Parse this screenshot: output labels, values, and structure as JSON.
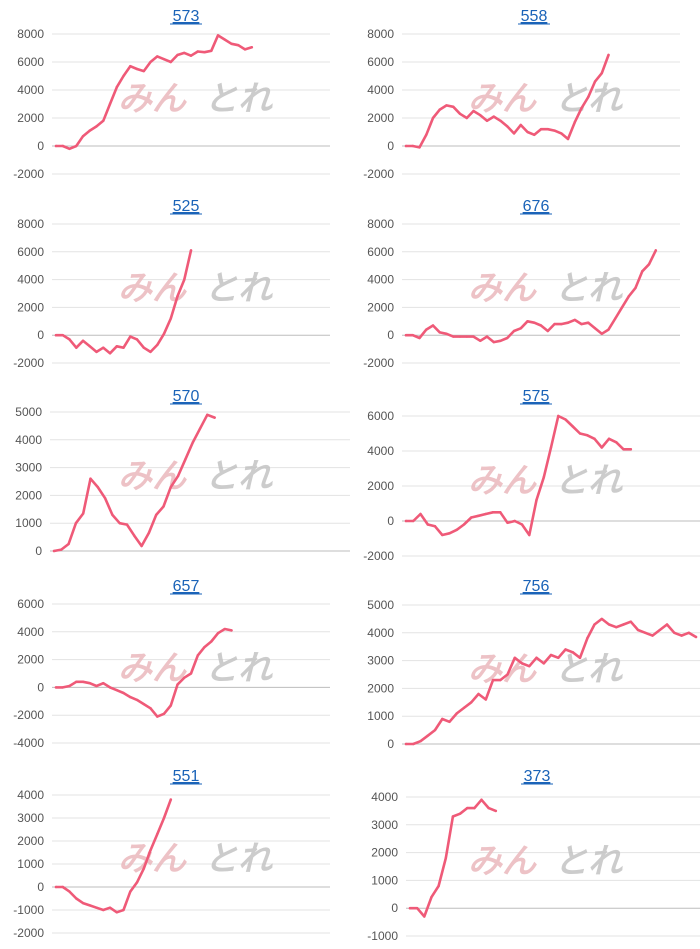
{
  "colors": {
    "line": "#ef5a78",
    "title_link": "#1a63b8",
    "grid": "#e3e3e3",
    "zero_line": "#bdbdbd",
    "tick_text": "#555555",
    "watermark_pink": "#eab8bd",
    "watermark_gray": "#c4c4c4"
  },
  "watermark": {
    "text_left": "みん",
    "text_right": "とれ"
  },
  "chart_data": [
    {
      "type": "line",
      "title": "573",
      "yticks": [
        8000,
        6000,
        4000,
        2000,
        0,
        -2000
      ],
      "ylim": [
        -2000,
        8000
      ],
      "x_points": 40,
      "values": [
        0,
        0,
        -200,
        0,
        700,
        1100,
        1400,
        1800,
        3000,
        4200,
        5000,
        5700,
        5500,
        5350,
        6000,
        6400,
        6200,
        6000,
        6500,
        6650,
        6450,
        6750,
        6700,
        6800,
        7900,
        7600,
        7300,
        7200,
        6900,
        7050
      ]
    },
    {
      "type": "line",
      "title": "558",
      "yticks": [
        8000,
        6000,
        4000,
        2000,
        0,
        -2000
      ],
      "ylim": [
        -2000,
        8000
      ],
      "x_points": 40,
      "values": [
        0,
        0,
        -100,
        800,
        2000,
        2600,
        2900,
        2800,
        2300,
        2000,
        2500,
        2200,
        1800,
        2100,
        1800,
        1400,
        900,
        1500,
        1000,
        800,
        1200,
        1200,
        1100,
        900,
        500,
        1700,
        2700,
        3500,
        4600,
        5200,
        6500
      ]
    },
    {
      "type": "line",
      "title": "525",
      "yticks": [
        8000,
        6000,
        4000,
        2000,
        0,
        -2000
      ],
      "ylim": [
        -2000,
        8000
      ],
      "x_points": 40,
      "values": [
        0,
        0,
        -300,
        -900,
        -400,
        -800,
        -1200,
        -900,
        -1300,
        -800,
        -900,
        -100,
        -300,
        -900,
        -1200,
        -700,
        100,
        1200,
        2800,
        4000,
        6100
      ]
    },
    {
      "type": "line",
      "title": "676",
      "yticks": [
        8000,
        6000,
        4000,
        2000,
        0,
        -2000
      ],
      "ylim": [
        -2000,
        8000
      ],
      "x_points": 40,
      "values": [
        0,
        0,
        -200,
        400,
        700,
        200,
        100,
        -100,
        -100,
        -100,
        -100,
        -400,
        -100,
        -500,
        -400,
        -200,
        300,
        500,
        1000,
        900,
        700,
        300,
        800,
        800,
        900,
        1100,
        800,
        900,
        500,
        100,
        400,
        1200,
        2000,
        2800,
        3400,
        4600,
        5100,
        6100
      ]
    },
    {
      "type": "line",
      "title": "570",
      "yticks": [
        5000,
        4000,
        3000,
        2000,
        1000,
        0
      ],
      "ylim": [
        0,
        5000
      ],
      "x_points": 40,
      "values": [
        0,
        50,
        250,
        1000,
        1350,
        2600,
        2300,
        1900,
        1300,
        1000,
        950,
        550,
        180,
        650,
        1300,
        1600,
        2300,
        2700,
        3300,
        3900,
        4400,
        4900,
        4800
      ]
    },
    {
      "type": "line",
      "title": "575",
      "yticks": [
        6000,
        4000,
        2000,
        0,
        -2000
      ],
      "ylim": [
        -2000,
        6000
      ],
      "x_points": 40,
      "values": [
        0,
        0,
        400,
        -200,
        -300,
        -800,
        -700,
        -500,
        -200,
        200,
        300,
        400,
        500,
        500,
        -100,
        0,
        -200,
        -800,
        1200,
        2500,
        4200,
        6000,
        5800,
        5400,
        5000,
        4900,
        4700,
        4200,
        4700,
        4500,
        4100,
        4100
      ]
    },
    {
      "type": "line",
      "title": "657",
      "yticks": [
        6000,
        4000,
        2000,
        0,
        -2000,
        -4000
      ],
      "ylim": [
        -4000,
        6000
      ],
      "x_points": 40,
      "values": [
        0,
        0,
        100,
        400,
        400,
        300,
        100,
        300,
        0,
        -200,
        -400,
        -700,
        -900,
        -1200,
        -1500,
        -2100,
        -1900,
        -1300,
        200,
        700,
        1000,
        2300,
        2900,
        3300,
        3900,
        4200,
        4100
      ]
    },
    {
      "type": "line",
      "title": "756",
      "yticks": [
        5000,
        4000,
        3000,
        2000,
        1000,
        0
      ],
      "ylim": [
        0,
        5000
      ],
      "x_points": 40,
      "values": [
        0,
        0,
        100,
        300,
        500,
        900,
        800,
        1100,
        1300,
        1500,
        1800,
        1600,
        2300,
        2300,
        2500,
        3100,
        2900,
        2800,
        3100,
        2900,
        3200,
        3100,
        3400,
        3300,
        3100,
        3800,
        4300,
        4500,
        4300,
        4200,
        4300,
        4400,
        4100,
        4000,
        3900,
        4100,
        4300,
        4000,
        3900,
        4000,
        3850
      ]
    },
    {
      "type": "line",
      "title": "551",
      "yticks": [
        4000,
        3000,
        2000,
        1000,
        0,
        -1000,
        -2000
      ],
      "ylim": [
        -2000,
        4000
      ],
      "x_points": 40,
      "values": [
        0,
        0,
        -200,
        -500,
        -700,
        -800,
        -900,
        -1000,
        -900,
        -1100,
        -1000,
        -200,
        200,
        800,
        1600,
        2300,
        3000,
        3800
      ]
    },
    {
      "type": "line",
      "title": "373",
      "yticks": [
        4000,
        3000,
        2000,
        1000,
        0,
        -1000
      ],
      "ylim": [
        -1000,
        4000
      ],
      "x_points": 40,
      "values": [
        0,
        0,
        -300,
        400,
        800,
        1800,
        3300,
        3400,
        3600,
        3600,
        3900,
        3600,
        3500
      ]
    }
  ]
}
